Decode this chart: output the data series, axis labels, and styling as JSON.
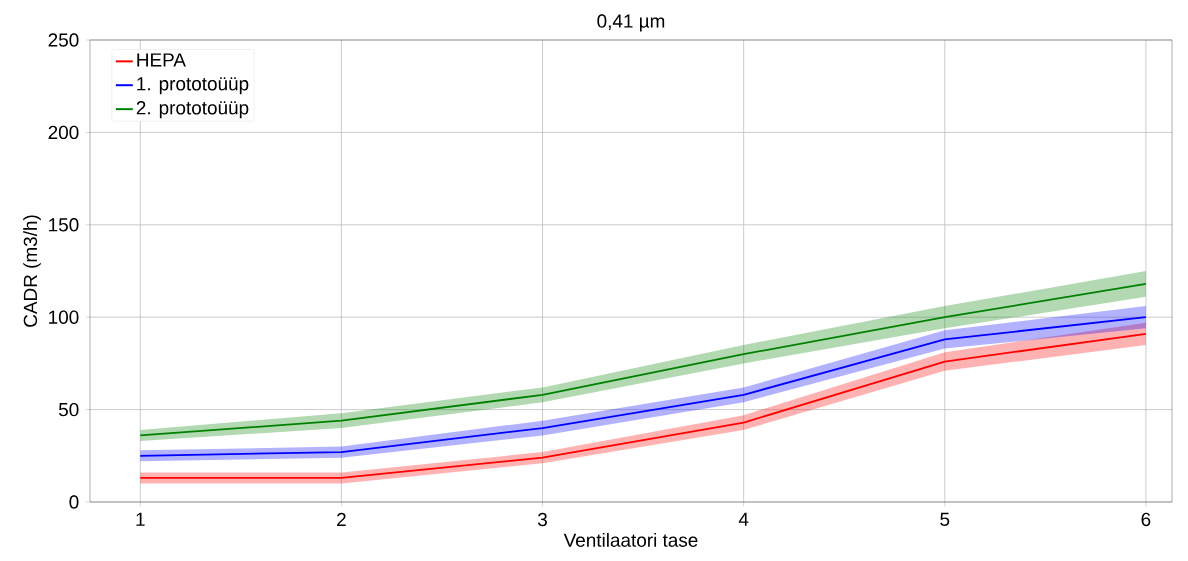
{
  "chart_data": {
    "type": "line",
    "title": "0,41 µm",
    "xlabel": "Ventilaatori tase",
    "ylabel": "CADR (m3/h)",
    "x": [
      1,
      2,
      3,
      4,
      5,
      6
    ],
    "series": [
      {
        "name": "HEPA",
        "color": "#ff0000",
        "values": [
          13,
          13,
          24,
          43,
          76,
          91
        ],
        "lower": [
          10,
          10,
          21,
          39,
          71,
          85
        ],
        "upper": [
          16,
          16,
          27,
          47,
          81,
          97
        ]
      },
      {
        "name": "1. prototoüüp",
        "color": "#0000ff",
        "values": [
          25,
          27,
          40,
          58,
          88,
          100
        ],
        "lower": [
          22,
          24,
          36,
          54,
          83,
          94
        ],
        "upper": [
          28,
          30,
          44,
          62,
          93,
          106
        ]
      },
      {
        "name": "2. prototoüüp",
        "color": "#008000",
        "values": [
          36,
          44,
          58,
          80,
          100,
          118
        ],
        "lower": [
          33,
          40,
          54,
          75,
          94,
          111
        ],
        "upper": [
          39,
          48,
          62,
          85,
          106,
          125
        ]
      }
    ],
    "xlim": [
      0.75,
      6.13
    ],
    "ylim": [
      0,
      250
    ],
    "xticks": [
      1,
      2,
      3,
      4,
      5,
      6
    ],
    "yticks": [
      0,
      50,
      100,
      150,
      200,
      250
    ],
    "grid": true,
    "legend": "top left",
    "marker": "none",
    "line_style": "solid"
  }
}
